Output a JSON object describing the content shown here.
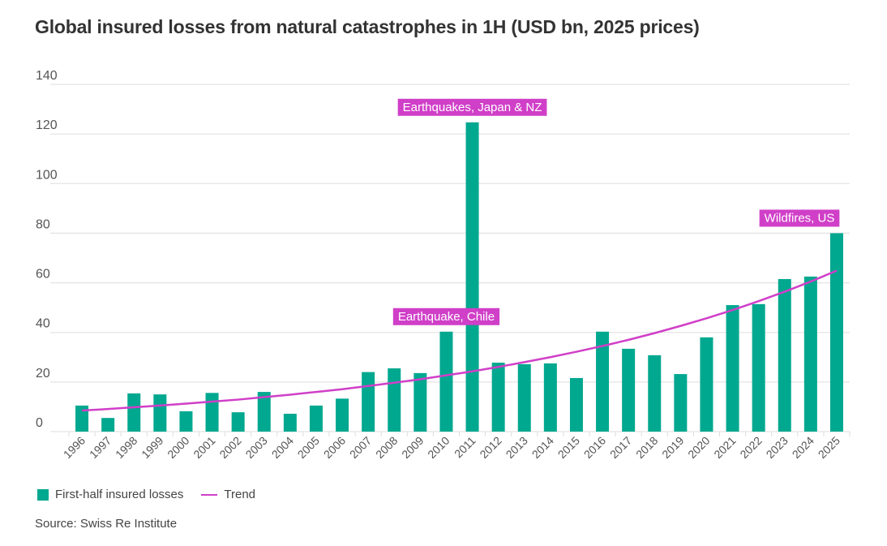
{
  "chart_data": {
    "type": "bar",
    "title": "Global insured losses from natural catastrophes in 1H (USD bn, 2025 prices)",
    "categories": [
      "1996",
      "1997",
      "1998",
      "1999",
      "2000",
      "2001",
      "2002",
      "2003",
      "2004",
      "2005",
      "2006",
      "2007",
      "2008",
      "2009",
      "2010",
      "2011",
      "2012",
      "2013",
      "2014",
      "2015",
      "2016",
      "2017",
      "2018",
      "2019",
      "2020",
      "2021",
      "2022",
      "2023",
      "2024",
      "2025"
    ],
    "series": [
      {
        "name": "First-half insured losses",
        "type": "bar",
        "color": "#00a88f",
        "values": [
          10.5,
          5.5,
          15.4,
          15.0,
          8.2,
          15.6,
          7.8,
          16.0,
          7.2,
          10.5,
          13.3,
          24.0,
          25.5,
          23.6,
          40.3,
          124.7,
          27.8,
          27.2,
          27.5,
          21.6,
          40.3,
          33.4,
          30.8,
          23.2,
          38.0,
          51.0,
          51.4,
          61.5,
          62.5,
          80.0
        ]
      },
      {
        "name": "Trend",
        "type": "line",
        "color": "#d03fc8",
        "values": [
          8.5,
          9.1,
          9.8,
          10.5,
          11.3,
          12.1,
          12.9,
          13.9,
          14.9,
          16.0,
          17.1,
          18.4,
          19.7,
          21.1,
          22.7,
          24.3,
          26.1,
          28.0,
          30.0,
          32.2,
          34.5,
          37.0,
          39.7,
          42.6,
          45.7,
          49.0,
          52.6,
          56.4,
          60.5,
          64.9
        ]
      }
    ],
    "ylim": [
      0,
      140
    ],
    "yticks": [
      "0",
      "20",
      "40",
      "60",
      "80",
      "100",
      "120",
      "140"
    ],
    "grid": true,
    "legend_position": "bottom-left",
    "annotations": [
      {
        "text": "Earthquake, Chile",
        "category": "2010"
      },
      {
        "text": "Earthquakes, Japan & NZ",
        "category": "2011"
      },
      {
        "text": "Wildfires, US",
        "category": "2025"
      }
    ],
    "annotation_color": "#d03fc8"
  },
  "legend": {
    "bars": "First-half insured losses",
    "trend": "Trend"
  },
  "source": "Source: Swiss Re Institute"
}
